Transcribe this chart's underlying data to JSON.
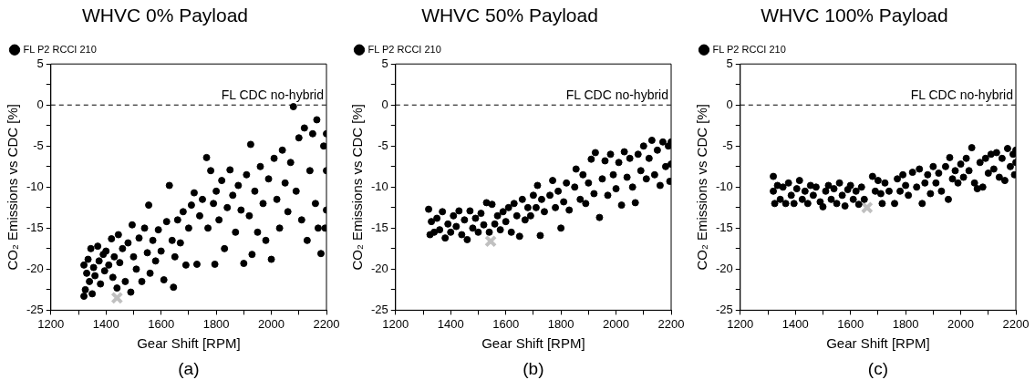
{
  "chart_data": [
    {
      "type": "scatter",
      "title": "WHVC 0% Payload",
      "xlabel": "Gear Shift [RPM]",
      "ylabel": "CO₂ Emissions vs CDC [%]",
      "legend": "top left",
      "marker": "circle",
      "annotations": [
        "(a)"
      ],
      "xlim": [
        1200,
        2200
      ],
      "xticks": [
        1200,
        {
          "value": 1300,
          "label": null
        },
        1400,
        {
          "value": 1500,
          "label": null
        },
        1600,
        {
          "value": 1700,
          "label": null
        },
        1800,
        {
          "value": 1900,
          "label": null
        },
        2000,
        {
          "value": 2100,
          "label": null
        },
        2200
      ],
      "ylim": [
        -25,
        5
      ],
      "yticks": [
        -25,
        {
          "value": -22.5,
          "label": null
        },
        -20,
        {
          "value": -17.5,
          "label": null
        },
        -15,
        {
          "value": -12.5,
          "label": null
        },
        -10,
        {
          "value": -7.5,
          "label": null
        },
        -5,
        {
          "value": -2.5,
          "label": null
        },
        0,
        {
          "value": 2.5,
          "label": null
        },
        5
      ],
      "ref_lines": [
        {
          "axis": "y",
          "value": 0,
          "label": "FL CDC no-hybrid",
          "line_style": "dashed",
          "color": "#000000"
        }
      ],
      "series": [
        {
          "name": "FL P2 RCCI 210",
          "color": "#000000",
          "x": [
            1320,
            1320,
            1325,
            1330,
            1335,
            1340,
            1345,
            1350,
            1355,
            1360,
            1370,
            1375,
            1380,
            1390,
            1395,
            1400,
            1410,
            1420,
            1425,
            1430,
            1440,
            1445,
            1450,
            1460,
            1470,
            1480,
            1490,
            1495,
            1500,
            1510,
            1520,
            1530,
            1540,
            1550,
            1555,
            1560,
            1570,
            1580,
            1590,
            1600,
            1610,
            1620,
            1630,
            1640,
            1645,
            1650,
            1660,
            1670,
            1680,
            1690,
            1700,
            1710,
            1720,
            1730,
            1740,
            1750,
            1765,
            1770,
            1780,
            1790,
            1795,
            1800,
            1810,
            1820,
            1830,
            1840,
            1850,
            1860,
            1870,
            1880,
            1890,
            1900,
            1910,
            1920,
            1925,
            1930,
            1940,
            1950,
            1960,
            1970,
            1980,
            1990,
            2000,
            2010,
            2020,
            2030,
            2040,
            2050,
            2060,
            2070,
            2080,
            2090,
            2100,
            2110,
            2120,
            2130,
            2140,
            2150,
            2160,
            2165,
            2170,
            2180,
            2190,
            2195,
            2200,
            2200,
            2200
          ],
          "values": [
            -19.5,
            -23.3,
            -22.5,
            -20.5,
            -18.8,
            -21.5,
            -17.5,
            -23,
            -19.8,
            -20.8,
            -17.2,
            -19,
            -21.8,
            -18.2,
            -20.2,
            -17.8,
            -19.5,
            -16.3,
            -21,
            -18.5,
            -22.3,
            -15.8,
            -19.2,
            -17.5,
            -21.5,
            -16.8,
            -22.8,
            -14.6,
            -18.5,
            -20,
            -16.2,
            -21.5,
            -15,
            -18,
            -12.2,
            -20.5,
            -16.5,
            -19,
            -15.2,
            -17.8,
            -21.3,
            -14.2,
            -9.8,
            -16.5,
            -22.2,
            -18.5,
            -14,
            -16.8,
            -13,
            -19.5,
            -15,
            -12.2,
            -10.7,
            -19.4,
            -13.5,
            -11.5,
            -6.4,
            -15,
            -8,
            -12,
            -19.4,
            -10.5,
            -14,
            -9.2,
            -17.5,
            -12.5,
            -7.9,
            -11,
            -15.5,
            -9.8,
            -12.8,
            -19.3,
            -8.5,
            -13.5,
            -4.8,
            -18.2,
            -10.5,
            -15.5,
            -7.5,
            -12,
            -16.5,
            -9,
            -18.8,
            -6.5,
            -11.5,
            -15,
            -5.5,
            -9.5,
            -13,
            -7,
            -0.2,
            -10.5,
            -4,
            -14,
            -2.8,
            -16.5,
            -8,
            -3.5,
            -12,
            -1.8,
            -15,
            -18.1,
            -5,
            -15,
            -12.8,
            -3.5,
            -8
          ]
        },
        {
          "color": "#c0c0c0",
          "marker": "cross",
          "x": [
            1440
          ],
          "values": [
            -23.5
          ]
        }
      ]
    },
    {
      "type": "scatter",
      "title": "WHVC 50% Payload",
      "xlabel": "Gear Shift [RPM]",
      "ylabel": "CO₂ Emissions vs CDC [%]",
      "legend": "top left",
      "marker": "circle",
      "annotations": [
        "(b)"
      ],
      "xlim": [
        1200,
        2200
      ],
      "xticks": [
        1200,
        {
          "value": 1300,
          "label": null
        },
        1400,
        {
          "value": 1500,
          "label": null
        },
        1600,
        {
          "value": 1700,
          "label": null
        },
        1800,
        {
          "value": 1900,
          "label": null
        },
        2000,
        {
          "value": 2100,
          "label": null
        },
        2200
      ],
      "ylim": [
        -25,
        5
      ],
      "yticks": [
        -25,
        {
          "value": -22.5,
          "label": null
        },
        -20,
        {
          "value": -17.5,
          "label": null
        },
        -15,
        {
          "value": -12.5,
          "label": null
        },
        -10,
        {
          "value": -7.5,
          "label": null
        },
        -5,
        {
          "value": -2.5,
          "label": null
        },
        0,
        {
          "value": 2.5,
          "label": null
        },
        5
      ],
      "ref_lines": [
        {
          "axis": "y",
          "value": 0,
          "label": "FL CDC no-hybrid",
          "line_style": "dashed",
          "color": "#000000"
        }
      ],
      "series": [
        {
          "name": "FL P2 RCCI 210",
          "color": "#000000",
          "x": [
            1320,
            1325,
            1330,
            1340,
            1350,
            1360,
            1370,
            1380,
            1390,
            1400,
            1410,
            1420,
            1430,
            1440,
            1450,
            1460,
            1470,
            1480,
            1490,
            1500,
            1510,
            1520,
            1530,
            1540,
            1550,
            1560,
            1570,
            1580,
            1590,
            1600,
            1610,
            1620,
            1630,
            1640,
            1650,
            1660,
            1670,
            1680,
            1690,
            1700,
            1710,
            1715,
            1725,
            1730,
            1740,
            1760,
            1770,
            1780,
            1790,
            1800,
            1810,
            1820,
            1830,
            1850,
            1855,
            1870,
            1880,
            1890,
            1900,
            1910,
            1920,
            1925,
            1940,
            1950,
            1960,
            1970,
            1980,
            1990,
            2000,
            2010,
            2020,
            2030,
            2040,
            2050,
            2060,
            2070,
            2080,
            2090,
            2100,
            2110,
            2120,
            2130,
            2140,
            2150,
            2160,
            2170,
            2180,
            2190,
            2195,
            2200,
            2200
          ],
          "values": [
            -12.7,
            -15.8,
            -14.2,
            -15.5,
            -13.8,
            -15.2,
            -13,
            -16.2,
            -14.5,
            -15.5,
            -13.5,
            -14.8,
            -12.9,
            -15.8,
            -14,
            -16.4,
            -12.9,
            -15,
            -13.8,
            -15.5,
            -13.2,
            -14.6,
            -11.9,
            -15.5,
            -12.1,
            -14.5,
            -13.5,
            -15.2,
            -13,
            -14.2,
            -12.5,
            -15.5,
            -12,
            -13.5,
            -16,
            -11.5,
            -14,
            -12.5,
            -13.5,
            -11,
            -12.5,
            -9.8,
            -15.9,
            -11.5,
            -13,
            -11,
            -9.2,
            -12.5,
            -10.5,
            -15,
            -11.8,
            -9.5,
            -12.8,
            -10,
            -7.8,
            -11.5,
            -8.5,
            -12,
            -9.5,
            -6.6,
            -10.8,
            -5.8,
            -13.7,
            -9,
            -6.8,
            -11,
            -6,
            -8.5,
            -10.2,
            -7,
            -12.2,
            -5.7,
            -8.8,
            -6.5,
            -10,
            -11.9,
            -6,
            -8,
            -5,
            -9,
            -6.5,
            -4.3,
            -8.5,
            -5.5,
            -9.8,
            -4.5,
            -7.5,
            -5,
            -9.3,
            -4.5,
            -7.2
          ]
        },
        {
          "color": "#c0c0c0",
          "marker": "cross",
          "x": [
            1545
          ],
          "values": [
            -16.6
          ]
        }
      ]
    },
    {
      "type": "scatter",
      "title": "WHVC 100% Payload",
      "xlabel": "Gear Shift [RPM]",
      "ylabel": "CO₂ Emissions vs CDC [%]",
      "legend": "top left",
      "marker": "circle",
      "annotations": [
        "(c)"
      ],
      "xlim": [
        1200,
        2200
      ],
      "xticks": [
        1200,
        {
          "value": 1300,
          "label": null
        },
        1400,
        {
          "value": 1500,
          "label": null
        },
        1600,
        {
          "value": 1700,
          "label": null
        },
        1800,
        {
          "value": 1900,
          "label": null
        },
        2000,
        {
          "value": 2100,
          "label": null
        },
        2200
      ],
      "ylim": [
        -25,
        5
      ],
      "yticks": [
        -25,
        {
          "value": -22.5,
          "label": null
        },
        -20,
        {
          "value": -17.5,
          "label": null
        },
        -15,
        {
          "value": -12.5,
          "label": null
        },
        -10,
        {
          "value": -7.5,
          "label": null
        },
        -5,
        {
          "value": -2.5,
          "label": null
        },
        0,
        {
          "value": 2.5,
          "label": null
        },
        5
      ],
      "ref_lines": [
        {
          "axis": "y",
          "value": 0,
          "label": "FL CDC no-hybrid",
          "line_style": "dashed",
          "color": "#000000"
        }
      ],
      "series": [
        {
          "name": "FL P2 RCCI 210",
          "color": "#000000",
          "x": [
            1320,
            1320,
            1325,
            1335,
            1345,
            1355,
            1365,
            1375,
            1385,
            1395,
            1405,
            1415,
            1425,
            1435,
            1445,
            1455,
            1465,
            1475,
            1490,
            1500,
            1510,
            1520,
            1530,
            1540,
            1550,
            1560,
            1570,
            1580,
            1590,
            1600,
            1610,
            1620,
            1630,
            1640,
            1650,
            1680,
            1690,
            1700,
            1710,
            1715,
            1725,
            1740,
            1760,
            1770,
            1780,
            1790,
            1800,
            1810,
            1825,
            1840,
            1850,
            1860,
            1870,
            1880,
            1890,
            1900,
            1910,
            1920,
            1930,
            1945,
            1955,
            1960,
            1970,
            1980,
            1990,
            2000,
            2010,
            2020,
            2030,
            2040,
            2050,
            2060,
            2070,
            2080,
            2090,
            2100,
            2110,
            2120,
            2130,
            2140,
            2150,
            2160,
            2170,
            2180,
            2190,
            2195,
            2200,
            2200
          ],
          "values": [
            -8.7,
            -10.5,
            -12,
            -9.8,
            -11.5,
            -10,
            -12,
            -9.5,
            -11,
            -12,
            -10.2,
            -9.2,
            -11.5,
            -10.5,
            -12,
            -9.8,
            -11,
            -10,
            -11.8,
            -12.4,
            -10.5,
            -9.8,
            -11.5,
            -10.2,
            -12,
            -9.5,
            -11,
            -12.3,
            -10.3,
            -9.8,
            -11.5,
            -10.5,
            -12.1,
            -10,
            -11.5,
            -8.7,
            -10.5,
            -9.2,
            -10.8,
            -12,
            -9.5,
            -10.5,
            -12,
            -9,
            -10.5,
            -8.5,
            -9.8,
            -11,
            -8.2,
            -10,
            -7.8,
            -12,
            -9.5,
            -8.5,
            -10.8,
            -7.5,
            -9.5,
            -8.3,
            -10.5,
            -7.5,
            -11.5,
            -6.4,
            -9,
            -8,
            -9.5,
            -7.2,
            -8.8,
            -6.5,
            -8,
            -5.2,
            -9.5,
            -10.2,
            -7,
            -10,
            -6.5,
            -8.3,
            -6,
            -7.8,
            -5.8,
            -8.8,
            -6.5,
            -9.2,
            -5.3,
            -7.5,
            -6,
            -8.5,
            -5.5,
            -7
          ]
        },
        {
          "color": "#c0c0c0",
          "marker": "cross",
          "x": [
            1660
          ],
          "values": [
            -12.5
          ]
        }
      ]
    }
  ]
}
